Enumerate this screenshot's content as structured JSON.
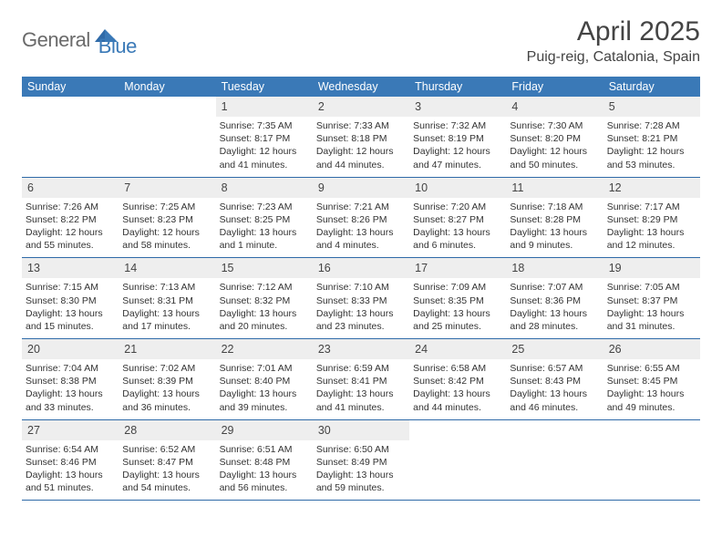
{
  "brand": {
    "part1": "General",
    "part2": "Blue"
  },
  "title": "April 2025",
  "location": "Puig-reig, Catalonia, Spain",
  "colors": {
    "header_bg": "#3a79b7",
    "header_text": "#ffffff",
    "daynum_bg": "#eeeeee",
    "rule": "#2f6aa8",
    "logo_gray": "#6a6a6a",
    "logo_blue": "#3a79b7"
  },
  "day_names": [
    "Sunday",
    "Monday",
    "Tuesday",
    "Wednesday",
    "Thursday",
    "Friday",
    "Saturday"
  ],
  "weeks": [
    [
      {
        "n": "",
        "sr": "",
        "ss": "",
        "dl": ""
      },
      {
        "n": "",
        "sr": "",
        "ss": "",
        "dl": ""
      },
      {
        "n": "1",
        "sr": "7:35 AM",
        "ss": "8:17 PM",
        "dl": "12 hours and 41 minutes."
      },
      {
        "n": "2",
        "sr": "7:33 AM",
        "ss": "8:18 PM",
        "dl": "12 hours and 44 minutes."
      },
      {
        "n": "3",
        "sr": "7:32 AM",
        "ss": "8:19 PM",
        "dl": "12 hours and 47 minutes."
      },
      {
        "n": "4",
        "sr": "7:30 AM",
        "ss": "8:20 PM",
        "dl": "12 hours and 50 minutes."
      },
      {
        "n": "5",
        "sr": "7:28 AM",
        "ss": "8:21 PM",
        "dl": "12 hours and 53 minutes."
      }
    ],
    [
      {
        "n": "6",
        "sr": "7:26 AM",
        "ss": "8:22 PM",
        "dl": "12 hours and 55 minutes."
      },
      {
        "n": "7",
        "sr": "7:25 AM",
        "ss": "8:23 PM",
        "dl": "12 hours and 58 minutes."
      },
      {
        "n": "8",
        "sr": "7:23 AM",
        "ss": "8:25 PM",
        "dl": "13 hours and 1 minute."
      },
      {
        "n": "9",
        "sr": "7:21 AM",
        "ss": "8:26 PM",
        "dl": "13 hours and 4 minutes."
      },
      {
        "n": "10",
        "sr": "7:20 AM",
        "ss": "8:27 PM",
        "dl": "13 hours and 6 minutes."
      },
      {
        "n": "11",
        "sr": "7:18 AM",
        "ss": "8:28 PM",
        "dl": "13 hours and 9 minutes."
      },
      {
        "n": "12",
        "sr": "7:17 AM",
        "ss": "8:29 PM",
        "dl": "13 hours and 12 minutes."
      }
    ],
    [
      {
        "n": "13",
        "sr": "7:15 AM",
        "ss": "8:30 PM",
        "dl": "13 hours and 15 minutes."
      },
      {
        "n": "14",
        "sr": "7:13 AM",
        "ss": "8:31 PM",
        "dl": "13 hours and 17 minutes."
      },
      {
        "n": "15",
        "sr": "7:12 AM",
        "ss": "8:32 PM",
        "dl": "13 hours and 20 minutes."
      },
      {
        "n": "16",
        "sr": "7:10 AM",
        "ss": "8:33 PM",
        "dl": "13 hours and 23 minutes."
      },
      {
        "n": "17",
        "sr": "7:09 AM",
        "ss": "8:35 PM",
        "dl": "13 hours and 25 minutes."
      },
      {
        "n": "18",
        "sr": "7:07 AM",
        "ss": "8:36 PM",
        "dl": "13 hours and 28 minutes."
      },
      {
        "n": "19",
        "sr": "7:05 AM",
        "ss": "8:37 PM",
        "dl": "13 hours and 31 minutes."
      }
    ],
    [
      {
        "n": "20",
        "sr": "7:04 AM",
        "ss": "8:38 PM",
        "dl": "13 hours and 33 minutes."
      },
      {
        "n": "21",
        "sr": "7:02 AM",
        "ss": "8:39 PM",
        "dl": "13 hours and 36 minutes."
      },
      {
        "n": "22",
        "sr": "7:01 AM",
        "ss": "8:40 PM",
        "dl": "13 hours and 39 minutes."
      },
      {
        "n": "23",
        "sr": "6:59 AM",
        "ss": "8:41 PM",
        "dl": "13 hours and 41 minutes."
      },
      {
        "n": "24",
        "sr": "6:58 AM",
        "ss": "8:42 PM",
        "dl": "13 hours and 44 minutes."
      },
      {
        "n": "25",
        "sr": "6:57 AM",
        "ss": "8:43 PM",
        "dl": "13 hours and 46 minutes."
      },
      {
        "n": "26",
        "sr": "6:55 AM",
        "ss": "8:45 PM",
        "dl": "13 hours and 49 minutes."
      }
    ],
    [
      {
        "n": "27",
        "sr": "6:54 AM",
        "ss": "8:46 PM",
        "dl": "13 hours and 51 minutes."
      },
      {
        "n": "28",
        "sr": "6:52 AM",
        "ss": "8:47 PM",
        "dl": "13 hours and 54 minutes."
      },
      {
        "n": "29",
        "sr": "6:51 AM",
        "ss": "8:48 PM",
        "dl": "13 hours and 56 minutes."
      },
      {
        "n": "30",
        "sr": "6:50 AM",
        "ss": "8:49 PM",
        "dl": "13 hours and 59 minutes."
      },
      {
        "n": "",
        "sr": "",
        "ss": "",
        "dl": ""
      },
      {
        "n": "",
        "sr": "",
        "ss": "",
        "dl": ""
      },
      {
        "n": "",
        "sr": "",
        "ss": "",
        "dl": ""
      }
    ]
  ],
  "labels": {
    "sunrise": "Sunrise: ",
    "sunset": "Sunset: ",
    "daylight": "Daylight: "
  }
}
